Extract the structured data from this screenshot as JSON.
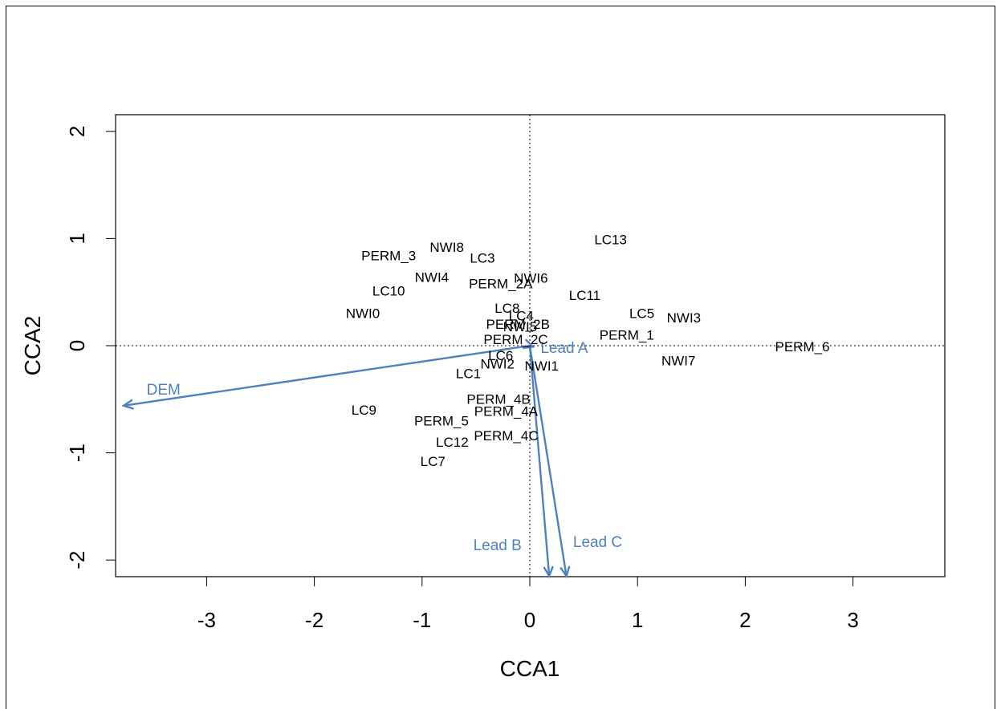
{
  "chart_data": {
    "type": "scatter",
    "title": "",
    "xlabel": "CCA1",
    "ylabel": "CCA2",
    "xlim": [
      -3.8,
      3.8
    ],
    "ylim": [
      -2.15,
      2.15
    ],
    "xticks": [
      "-3",
      "-2",
      "-1",
      "0",
      "1",
      "2",
      "3"
    ],
    "xtick_values": [
      -3,
      -2,
      -1,
      0,
      1,
      2,
      3
    ],
    "yticks": [
      "-2",
      "-1",
      "0",
      "1",
      "2"
    ],
    "ytick_values": [
      -2,
      -1,
      0,
      1,
      2
    ],
    "reference_lines": {
      "x": 0,
      "y": 0,
      "style": "dotted"
    },
    "arrow_color": "#4f81bd",
    "sites": [
      {
        "label": "LC13",
        "x": 0.75,
        "y": 0.98
      },
      {
        "label": "PERM_3",
        "x": -1.31,
        "y": 0.83
      },
      {
        "label": "NWI8",
        "x": -0.77,
        "y": 0.91
      },
      {
        "label": "LC3",
        "x": -0.44,
        "y": 0.81
      },
      {
        "label": "NWI4",
        "x": -0.91,
        "y": 0.63
      },
      {
        "label": "NWI6",
        "x": 0.01,
        "y": 0.62
      },
      {
        "label": "PERM_2A",
        "x": -0.27,
        "y": 0.57
      },
      {
        "label": "LC10",
        "x": -1.31,
        "y": 0.5
      },
      {
        "label": "LC11",
        "x": 0.51,
        "y": 0.46
      },
      {
        "label": "NWI0",
        "x": -1.55,
        "y": 0.29
      },
      {
        "label": "LC8",
        "x": -0.21,
        "y": 0.34
      },
      {
        "label": "LC5",
        "x": 1.04,
        "y": 0.29
      },
      {
        "label": "NWI3",
        "x": 1.43,
        "y": 0.25
      },
      {
        "label": "LC4",
        "x": -0.08,
        "y": 0.27
      },
      {
        "label": "PERM_2B",
        "x": -0.11,
        "y": 0.19
      },
      {
        "label": "NWI5",
        "x": -0.09,
        "y": 0.17
      },
      {
        "label": "PERM_1",
        "x": 0.9,
        "y": 0.09
      },
      {
        "label": "PERM_2C",
        "x": -0.13,
        "y": 0.05
      },
      {
        "label": "PERM_6",
        "x": 2.53,
        "y": -0.02
      },
      {
        "label": "LC6",
        "x": -0.27,
        "y": -0.1
      },
      {
        "label": "NWI2",
        "x": -0.3,
        "y": -0.18
      },
      {
        "label": "NWI1",
        "x": 0.11,
        "y": -0.2
      },
      {
        "label": "NWI7",
        "x": 1.38,
        "y": -0.15
      },
      {
        "label": "LC1",
        "x": -0.57,
        "y": -0.27
      },
      {
        "label": "PERM_4B",
        "x": -0.29,
        "y": -0.51
      },
      {
        "label": "LC9",
        "x": -1.54,
        "y": -0.61
      },
      {
        "label": "PERM_4A",
        "x": -0.22,
        "y": -0.62
      },
      {
        "label": "PERM_5",
        "x": -0.82,
        "y": -0.71
      },
      {
        "label": "PERM_4C",
        "x": -0.22,
        "y": -0.85
      },
      {
        "label": "LC12",
        "x": -0.72,
        "y": -0.91
      },
      {
        "label": "LC7",
        "x": -0.9,
        "y": -1.09
      }
    ],
    "biplot_arrows": [
      {
        "label": "DEM",
        "x": -3.77,
        "y": -0.56,
        "label_x": -3.4,
        "label_y": -0.42
      },
      {
        "label": "Lead A",
        "x": 0.03,
        "y": -0.01,
        "label_x": 0.32,
        "label_y": -0.03
      },
      {
        "label": "Lead B",
        "x": 0.18,
        "y": -2.15,
        "label_x": -0.3,
        "label_y": -1.87
      },
      {
        "label": "Lead C",
        "x": 0.34,
        "y": -2.15,
        "label_x": 0.63,
        "label_y": -1.84
      }
    ]
  }
}
